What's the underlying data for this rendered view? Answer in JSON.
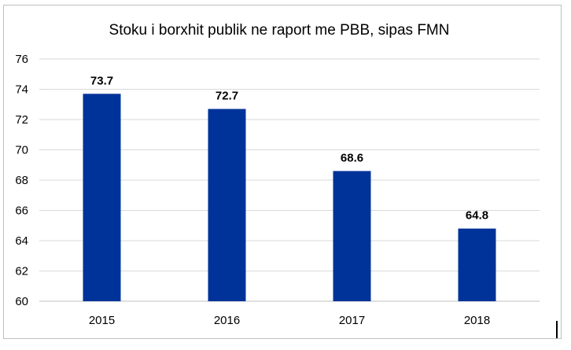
{
  "chart_data": {
    "type": "bar",
    "title": "Stoku i borxhit publik ne raport me PBB, sipas FMN",
    "categories": [
      "2015",
      "2016",
      "2017",
      "2018"
    ],
    "values": [
      73.7,
      72.7,
      68.6,
      64.8
    ],
    "data_labels": [
      "73.7",
      "72.7",
      "68.6",
      "64.8"
    ],
    "xlabel": "",
    "ylabel": "",
    "ylim": [
      60,
      76
    ],
    "yticks": [
      60,
      62,
      64,
      66,
      68,
      70,
      72,
      74,
      76
    ],
    "grid": true,
    "legend": "none",
    "bar_color": "#003399",
    "grid_color": "#d9d9d9"
  }
}
